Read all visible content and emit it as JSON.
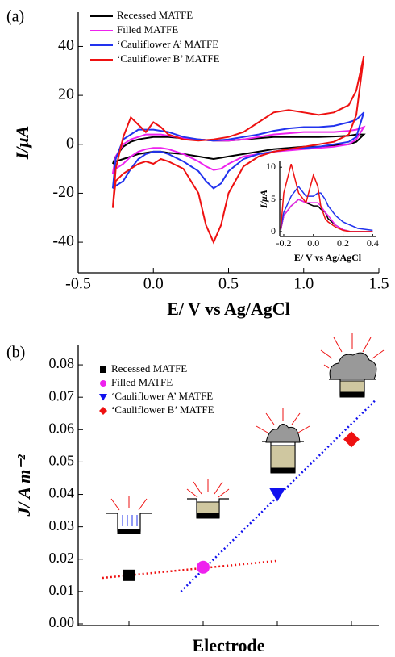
{
  "chart_data": [
    {
      "type": "line",
      "panel_label": "(a)",
      "xlabel": "E/ V vs Ag/AgCl",
      "ylabel": "I/μA",
      "x": [
        -0.27,
        -0.25,
        -0.2,
        -0.15,
        -0.1,
        -0.05,
        0,
        0.05,
        0.1,
        0.2,
        0.3,
        0.4,
        0.5,
        0.6,
        0.7,
        0.8,
        0.9,
        1.0,
        1.1,
        1.2,
        1.3,
        1.35,
        1.4,
        1.4,
        1.35,
        1.3,
        1.2,
        1.1,
        1.0,
        0.9,
        0.8,
        0.7,
        0.6,
        0.5,
        0.45,
        0.4,
        0.35,
        0.3,
        0.2,
        0.1,
        0.05,
        0,
        -0.05,
        -0.1,
        -0.15,
        -0.2,
        -0.25,
        -0.27
      ],
      "series": [
        {
          "name": "Recessed MATFE",
          "color": "#000000",
          "values": [
            -8,
            -5,
            -1,
            1,
            2,
            2.5,
            3,
            3,
            3,
            2.5,
            2,
            1.5,
            1.5,
            2,
            2.5,
            3,
            3,
            3,
            3,
            3.2,
            3.5,
            4,
            4,
            4,
            1,
            0,
            -0.5,
            -1,
            -1,
            -1.5,
            -2,
            -3,
            -4,
            -5,
            -5.5,
            -6,
            -5.5,
            -5,
            -4,
            -3.5,
            -3,
            -3,
            -3.5,
            -4,
            -5,
            -6,
            -7,
            -8
          ]
        },
        {
          "name": "Filled MATFE",
          "color": "#ee22ee",
          "values": [
            -12,
            -5,
            0,
            2,
            3,
            4,
            4,
            4,
            3.5,
            2.5,
            2,
            1.5,
            1.5,
            2,
            3,
            4,
            4.5,
            5,
            5,
            5,
            5.5,
            6,
            7,
            7,
            2,
            0,
            -1,
            -1.5,
            -2,
            -2.5,
            -3,
            -4,
            -5,
            -8,
            -10,
            -10.5,
            -9,
            -7,
            -4,
            -2,
            -1.5,
            -1.5,
            -2,
            -3,
            -5,
            -8,
            -10,
            -12
          ]
        },
        {
          "name": "‘Cauliflower A’ MATFE",
          "color": "#2233ee",
          "values": [
            -18,
            -6,
            2,
            4,
            6,
            6,
            6,
            5.5,
            5,
            3,
            2,
            1.5,
            2,
            3,
            4,
            5.5,
            6.5,
            7,
            7,
            7.5,
            9,
            10,
            13,
            13,
            3,
            1,
            0,
            -1,
            -1.5,
            -2,
            -3,
            -4,
            -6,
            -11,
            -16,
            -18,
            -15,
            -11,
            -7,
            -4,
            -3,
            -3,
            -4,
            -6,
            -10,
            -15,
            -17,
            -18
          ]
        },
        {
          "name": "‘Cauliflower B’ MATFE",
          "color": "#ee1111",
          "values": [
            -26,
            -10,
            3,
            11,
            8,
            5,
            9,
            7,
            4,
            2,
            1.5,
            2,
            3,
            5,
            9,
            13,
            14,
            13,
            12,
            13,
            16,
            22,
            36,
            36,
            12,
            4,
            1,
            0,
            -1,
            -2,
            -3,
            -5,
            -9,
            -20,
            -33,
            -40,
            -33,
            -20,
            -10,
            -7,
            -6,
            -8,
            -7,
            -8,
            -10,
            -12,
            -15,
            -26
          ]
        }
      ],
      "xlim": [
        -0.5,
        1.5
      ],
      "ylim": [
        -52.5,
        54
      ],
      "xticks": [
        -0.5,
        {
          "value": 0,
          "label": "0.0"
        },
        0.5,
        {
          "value": 1,
          "label": "1.0"
        },
        1.5
      ],
      "yticks": [
        -40,
        -20,
        0,
        20,
        40
      ],
      "legend": "upper left"
    },
    {
      "type": "line",
      "xlabel": "E/ V vs Ag/AgCl",
      "ylabel": "I/μA",
      "x": [
        -0.22,
        -0.2,
        -0.15,
        -0.1,
        -0.05,
        0,
        0.03,
        0.05,
        0.08,
        0.1,
        0.15,
        0.2,
        0.25,
        0.3,
        0.4
      ],
      "series": [
        {
          "color": "#000000",
          "values": [
            0.3,
            2.5,
            4,
            5,
            4.5,
            4,
            4,
            3.5,
            3,
            2,
            1,
            0.3,
            0,
            0,
            0
          ]
        },
        {
          "color": "#ee22ee",
          "values": [
            0.3,
            2.5,
            4,
            5,
            4.5,
            4.5,
            4.5,
            4,
            3,
            2.5,
            1,
            0.3,
            0,
            0,
            0
          ]
        },
        {
          "color": "#2233ee",
          "values": [
            0.5,
            3,
            5.5,
            7,
            5.5,
            5.5,
            6,
            6,
            5,
            4,
            2.5,
            1.5,
            1,
            0.5,
            0.2
          ]
        },
        {
          "color": "#ee1111",
          "values": [
            0.5,
            6,
            10.5,
            6,
            4.5,
            8.8,
            7,
            4,
            2,
            1.5,
            0.7,
            0.2,
            0,
            0,
            0
          ]
        }
      ],
      "xlim": [
        -0.227,
        0.42
      ],
      "ylim": [
        -0.75,
        10.9
      ],
      "xticks": [
        -0.2,
        {
          "value": 0,
          "label": "0.0"
        },
        0.2,
        0.4
      ],
      "yticks": [
        0,
        5,
        10
      ]
    },
    {
      "type": "scatter",
      "panel_label": "(b)",
      "xlabel": "Electrode",
      "ylabel": "J/ A m⁻²",
      "categories": [
        null,
        null,
        null,
        null
      ],
      "series": [
        {
          "name": "Recessed MATFE",
          "color": "#000000",
          "marker": "square",
          "values": [
            0.015,
            null,
            null,
            null
          ]
        },
        {
          "name": "Filled MATFE",
          "color": "#ee22ee",
          "marker": "circle",
          "values": [
            null,
            0.0175,
            null,
            null
          ]
        },
        {
          "name": "‘Cauliflower A’ MATFE",
          "color": "#1111ee",
          "marker": "triangle-down",
          "values": [
            null,
            null,
            0.04,
            null
          ]
        },
        {
          "name": "‘Cauliflower B’ MATFE",
          "color": "#ee1111",
          "marker": "diamond",
          "values": [
            null,
            null,
            null,
            0.057
          ]
        }
      ],
      "trend_lines": [
        {
          "color": "#ee1111",
          "x": [
            -0.36,
            2.01
          ],
          "y": [
            0.0142,
            0.0195
          ]
        },
        {
          "color": "#1111ee",
          "x": [
            0.7,
            3.32
          ],
          "y": [
            0.01,
            0.069
          ]
        }
      ],
      "ylim": [
        -0.0005,
        0.086
      ],
      "yticks": [
        {
          "value": 0,
          "label": "0.00"
        },
        {
          "value": 0.01,
          "label": "0.01"
        },
        {
          "value": 0.02,
          "label": "0.02"
        },
        {
          "value": 0.03,
          "label": "0.03"
        },
        {
          "value": 0.04,
          "label": "0.04"
        },
        {
          "value": 0.05,
          "label": "0.05"
        },
        {
          "value": 0.06,
          "label": "0.06"
        },
        {
          "value": 0.07,
          "label": "0.07"
        },
        {
          "value": 0.08,
          "label": "0.08"
        }
      ],
      "legend": "upper left"
    }
  ]
}
